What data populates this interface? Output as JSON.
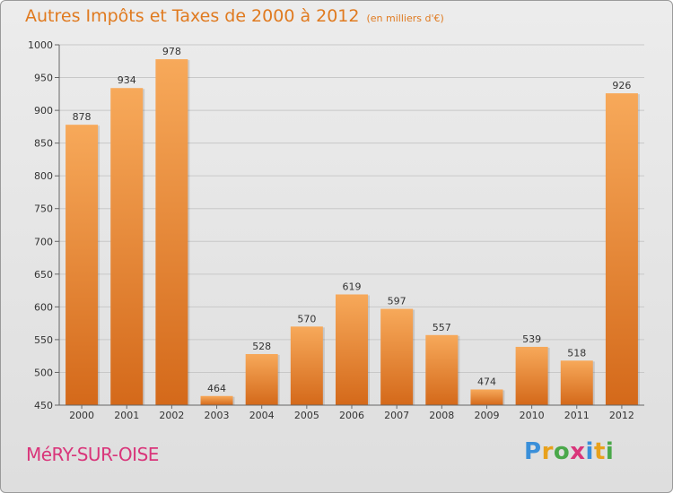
{
  "title": "Autres Impôts et Taxes de 2000 à 2012",
  "subtitle": "(en milliers d'€)",
  "commune": "MéRY-SUR-OISE",
  "logo": {
    "text": "Proxiti",
    "letters": [
      "P",
      "r",
      "o",
      "x",
      "i",
      "t",
      "i"
    ],
    "colors": [
      "#3a8fd9",
      "#e8a11c",
      "#4aa84a",
      "#d9357a",
      "#3a8fd9",
      "#e8a11c",
      "#4aa84a"
    ]
  },
  "colors": {
    "bar_top": "#f7a95a",
    "bar_bottom": "#d4691a",
    "title": "#e07a1f",
    "commune": "#d9357a",
    "grid": "#c8c8c8"
  },
  "chart_data": {
    "type": "bar",
    "title": "Autres Impôts et Taxes de 2000 à 2012",
    "subtitle": "(en milliers d'€)",
    "categories": [
      "2000",
      "2001",
      "2002",
      "2003",
      "2004",
      "2005",
      "2006",
      "2007",
      "2008",
      "2009",
      "2010",
      "2011",
      "2012"
    ],
    "values": [
      878,
      934,
      978,
      464,
      528,
      570,
      619,
      597,
      557,
      474,
      539,
      518,
      926
    ],
    "ylim": [
      450,
      1000
    ],
    "yticks": [
      450,
      500,
      550,
      600,
      650,
      700,
      750,
      800,
      850,
      900,
      950,
      1000
    ],
    "grid": true,
    "data_labels": true
  }
}
